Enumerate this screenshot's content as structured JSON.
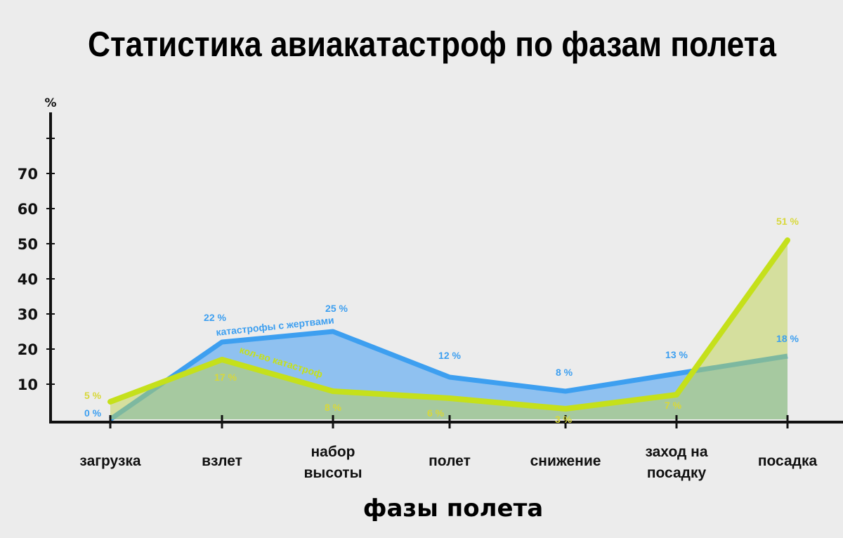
{
  "chart_data": {
    "type": "area",
    "title": "Статистика авиакатастроф по фазам полета",
    "ylabel": "%",
    "xlabel": "фазы полета",
    "ylim": [
      0,
      80
    ],
    "yticks": [
      10,
      20,
      30,
      40,
      50,
      60,
      70
    ],
    "grid": false,
    "categories": [
      [
        "загрузка"
      ],
      [
        "взлет"
      ],
      [
        "набор",
        "высоты"
      ],
      [
        "полет"
      ],
      [
        "снижение"
      ],
      [
        "заход на",
        "посадку"
      ],
      [
        "посадка"
      ]
    ],
    "series": [
      {
        "name": "катастрофы с жертвами",
        "color": "#3d9ff0",
        "fill": "#8fc1f0",
        "values": [
          0,
          22,
          25,
          12,
          8,
          13,
          18
        ],
        "labels": [
          "0 %",
          "22 %",
          "25  %",
          "12 %",
          "8 %",
          "13 %",
          "18 %"
        ]
      },
      {
        "name": "кол-во катастроф",
        "color": "#c5e01b",
        "fill": "rgba(190,210,80,0.5)",
        "values": [
          5,
          17,
          8,
          6,
          3,
          7,
          51
        ],
        "labels": [
          "5 %",
          "17 %",
          "8 %",
          "6 %",
          "3 %",
          "7 %",
          "51 %"
        ]
      }
    ]
  }
}
